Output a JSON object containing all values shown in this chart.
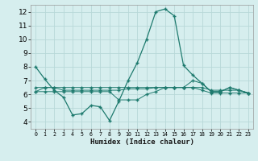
{
  "xlabel": "Humidex (Indice chaleur)",
  "bg_color": "#d6eeee",
  "grid_color": "#b8d8d8",
  "line_color": "#1e7a6e",
  "xlim": [
    -0.5,
    23.5
  ],
  "ylim": [
    3.5,
    12.5
  ],
  "xticks": [
    0,
    1,
    2,
    3,
    4,
    5,
    6,
    7,
    8,
    9,
    10,
    11,
    12,
    13,
    14,
    15,
    16,
    17,
    18,
    19,
    20,
    21,
    22,
    23
  ],
  "yticks": [
    4,
    5,
    6,
    7,
    8,
    9,
    10,
    11,
    12
  ],
  "line1_x": [
    0,
    1,
    2,
    3,
    4,
    5,
    6,
    7,
    8,
    9,
    10,
    11,
    12,
    13,
    14,
    15,
    16,
    17,
    18,
    19,
    20,
    21,
    22,
    23
  ],
  "line1_y": [
    8.0,
    7.1,
    6.3,
    5.8,
    4.5,
    4.6,
    5.2,
    5.1,
    4.1,
    5.5,
    7.0,
    8.3,
    10.0,
    12.0,
    12.2,
    11.7,
    8.1,
    7.4,
    6.8,
    6.2,
    6.2,
    6.5,
    6.3,
    6.1
  ],
  "line2_x": [
    0,
    1,
    2,
    3,
    4,
    5,
    6,
    7,
    8,
    9,
    10,
    11,
    12,
    13,
    14,
    15,
    16,
    17,
    18,
    19,
    20,
    21,
    22,
    23
  ],
  "line2_y": [
    6.5,
    6.5,
    6.5,
    6.3,
    6.3,
    6.3,
    6.3,
    6.3,
    6.3,
    6.3,
    6.4,
    6.4,
    6.4,
    6.5,
    6.5,
    6.5,
    6.5,
    6.5,
    6.3,
    6.1,
    6.1,
    6.1,
    6.1,
    6.1
  ],
  "line3_x": [
    0,
    1,
    2,
    3,
    4,
    5,
    6,
    7,
    8,
    9,
    10,
    11,
    12,
    13,
    14,
    15,
    16,
    17,
    18,
    19,
    20,
    21,
    22,
    23
  ],
  "line3_y": [
    6.2,
    6.2,
    6.2,
    6.2,
    6.2,
    6.2,
    6.2,
    6.2,
    6.2,
    5.6,
    5.6,
    5.6,
    6.0,
    6.2,
    6.5,
    6.5,
    6.5,
    6.5,
    6.5,
    6.3,
    6.3,
    6.3,
    6.3,
    6.1
  ],
  "line4_x": [
    0,
    1,
    2,
    3,
    4,
    5,
    6,
    7,
    8,
    9,
    10,
    11,
    12,
    13,
    14,
    15,
    16,
    17,
    18,
    19,
    20,
    21,
    22,
    23
  ],
  "line4_y": [
    6.2,
    6.5,
    6.5,
    6.5,
    6.5,
    6.5,
    6.5,
    6.5,
    6.5,
    6.5,
    6.5,
    6.5,
    6.5,
    6.5,
    6.5,
    6.5,
    6.5,
    7.0,
    6.8,
    6.2,
    6.2,
    6.5,
    6.3,
    6.1
  ],
  "ylabel_fontsize": 6,
  "xlabel_fontsize": 6.5,
  "ytick_fontsize": 6.5,
  "xtick_fontsize": 4.8
}
